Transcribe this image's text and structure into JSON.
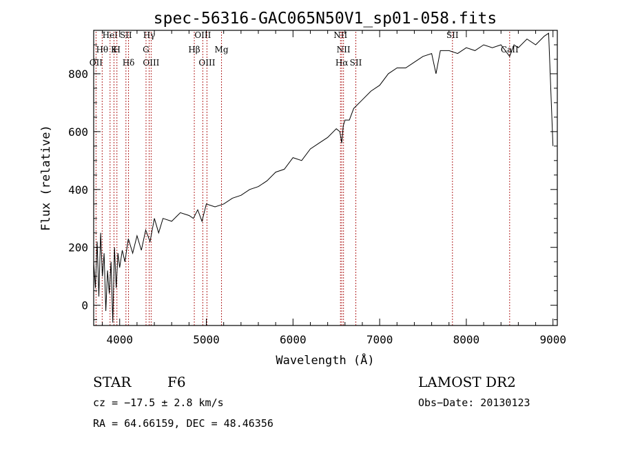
{
  "chart_data": {
    "type": "line",
    "title": "spec-56316-GAC065N50V1_sp01-058.fits",
    "xlabel": "Wavelength (Å)",
    "ylabel": "Flux (relative)",
    "xlim": [
      3700,
      9050
    ],
    "ylim": [
      -70,
      950
    ],
    "x_ticks": [
      4000,
      5000,
      6000,
      7000,
      8000,
      9000
    ],
    "y_ticks": [
      0,
      200,
      400,
      600,
      800
    ],
    "grid": false,
    "line_color": "#000000",
    "marker_color": "#b22222",
    "series": [
      {
        "x": [
          3700,
          3720,
          3740,
          3760,
          3780,
          3800,
          3820,
          3840,
          3860,
          3880,
          3900,
          3920,
          3940,
          3960,
          3980,
          4000,
          4030,
          4060,
          4100,
          4150,
          4200,
          4250,
          4300,
          4350,
          4400,
          4450,
          4500,
          4600,
          4700,
          4800,
          4850,
          4900,
          4950,
          5000,
          5100,
          5200,
          5300,
          5400,
          5500,
          5600,
          5700,
          5800,
          5900,
          6000,
          6100,
          6200,
          6300,
          6400,
          6500,
          6540,
          6563,
          6580,
          6600,
          6650,
          6700,
          6800,
          6900,
          7000,
          7100,
          7200,
          7300,
          7400,
          7500,
          7600,
          7650,
          7700,
          7800,
          7900,
          8000,
          8100,
          8200,
          8300,
          8400,
          8500,
          8550,
          8600,
          8700,
          8800,
          8900,
          8950,
          9000
        ],
        "y": [
          150,
          60,
          220,
          30,
          250,
          100,
          180,
          -20,
          120,
          40,
          150,
          -60,
          200,
          60,
          180,
          130,
          190,
          150,
          230,
          180,
          240,
          190,
          260,
          220,
          300,
          250,
          300,
          290,
          320,
          310,
          300,
          330,
          290,
          350,
          340,
          350,
          370,
          380,
          400,
          410,
          430,
          460,
          470,
          510,
          500,
          540,
          560,
          580,
          610,
          600,
          560,
          620,
          640,
          640,
          680,
          710,
          740,
          760,
          800,
          820,
          820,
          840,
          860,
          870,
          800,
          880,
          880,
          870,
          890,
          880,
          900,
          890,
          900,
          860,
          900,
          890,
          920,
          900,
          930,
          940,
          550
        ]
      }
    ],
    "lines": [
      {
        "label": "OII",
        "wl": 3727
      },
      {
        "label": "Hθ",
        "wl": 3798
      },
      {
        "label": "HeI",
        "wl": 3889
      },
      {
        "label": "K",
        "wl": 3934
      },
      {
        "label": "H",
        "wl": 3968
      },
      {
        "label": "SII",
        "wl": 4072
      },
      {
        "label": "Hδ",
        "wl": 4102
      },
      {
        "label": "Hγ",
        "wl": 4340
      },
      {
        "label": "G",
        "wl": 4304
      },
      {
        "label": "OIII",
        "wl": 4363
      },
      {
        "label": "Hβ",
        "wl": 4861
      },
      {
        "label": "OIII",
        "wl": 4959
      },
      {
        "label": "OIII",
        "wl": 5007
      },
      {
        "label": "Mg",
        "wl": 5175
      },
      {
        "label": "NII",
        "wl": 6548
      },
      {
        "label": "NII",
        "wl": 6583
      },
      {
        "label": "Hα",
        "wl": 6563
      },
      {
        "label": "SII",
        "wl": 6725
      },
      {
        "label": "SII",
        "wl": 7840
      },
      {
        "label": "CaII",
        "wl": 8500
      }
    ]
  },
  "info": {
    "object_class": "STAR",
    "subclass": "F6",
    "survey": "LAMOST DR2",
    "cz": "cz = −17.5 ± 2.8 km/s",
    "obs_date": "Obs−Date: 20130123",
    "coords": "RA =  64.66159, DEC =  48.46356"
  }
}
